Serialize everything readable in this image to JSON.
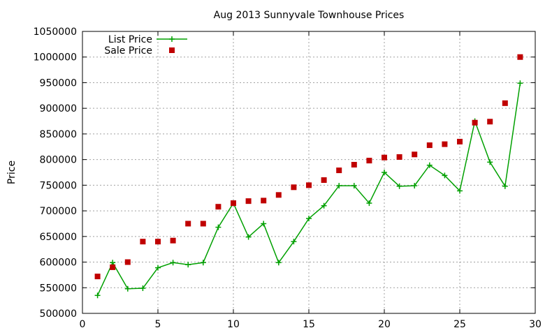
{
  "chart_data": {
    "type": "line",
    "title": "Aug 2013 Sunnyvale Townhouse Prices",
    "xlabel": "",
    "ylabel": "Price",
    "xlim": [
      0,
      30
    ],
    "ylim": [
      500000,
      1050000
    ],
    "xticks": [
      "0",
      "5",
      "10",
      "15",
      "20",
      "25",
      "30"
    ],
    "yticks": [
      "500000",
      "550000",
      "600000",
      "650000",
      "700000",
      "750000",
      "800000",
      "850000",
      "900000",
      "950000",
      "1000000",
      "1050000"
    ],
    "grid": true,
    "legend_position": "top-left",
    "series": [
      {
        "name": "List Price",
        "style": "line+cross",
        "color": "#00a000",
        "x": [
          1,
          2,
          3,
          4,
          5,
          6,
          7,
          8,
          9,
          10,
          11,
          12,
          13,
          14,
          15,
          16,
          17,
          18,
          19,
          20,
          21,
          22,
          23,
          24,
          25,
          26,
          27,
          28,
          29
        ],
        "y": [
          535000,
          599000,
          548000,
          549000,
          589000,
          599000,
          595000,
          599000,
          668000,
          715000,
          649000,
          675000,
          599000,
          640000,
          685000,
          710000,
          749000,
          749000,
          715000,
          775000,
          748000,
          749000,
          789000,
          769000,
          739000,
          875000,
          795000,
          748000,
          949000
        ]
      },
      {
        "name": "Sale Price",
        "style": "square",
        "color": "#c00000",
        "x": [
          1,
          2,
          3,
          4,
          5,
          6,
          7,
          8,
          9,
          10,
          11,
          12,
          13,
          14,
          15,
          16,
          17,
          18,
          19,
          20,
          21,
          22,
          23,
          24,
          25,
          26,
          27,
          28,
          29
        ],
        "y": [
          572000,
          590000,
          600000,
          640000,
          640000,
          642000,
          675000,
          675000,
          708000,
          715000,
          719000,
          720000,
          731000,
          746000,
          750000,
          760000,
          779000,
          790000,
          798000,
          804000,
          805000,
          810000,
          828000,
          830000,
          835000,
          872000,
          874000,
          910000,
          1000000
        ]
      }
    ]
  }
}
